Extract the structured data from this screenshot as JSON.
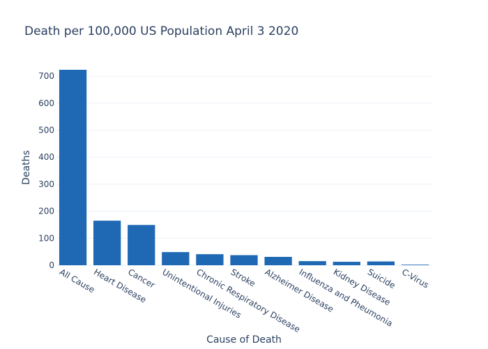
{
  "chart_data": {
    "type": "bar",
    "title": "Death per 100,000 US Population April 3 2020",
    "xlabel": "Cause of Death",
    "ylabel": "Deaths",
    "categories": [
      "All Cause",
      "Heart Disease",
      "Cancer",
      "Unintentional Injuries",
      "Chronic Respiratory Disease",
      "Stroke",
      "Alzheimer Disease",
      "Influenza and Pheumonia",
      "Kidney Disease",
      "Suicide",
      "C-Virus"
    ],
    "values": [
      723.6,
      165.0,
      149.1,
      48.7,
      40.9,
      37.3,
      31.0,
      15.2,
      12.8,
      14.0,
      2.2
    ],
    "ylim": [
      0,
      723.6
    ],
    "yticks": [
      0,
      100,
      200,
      300,
      400,
      500,
      600,
      700
    ],
    "grid": true,
    "legend": "none",
    "colors": {
      "bar": "#1f68b3",
      "grid": "#ebf0f8",
      "text": "#2a3f5f",
      "background": "#ffffff"
    }
  }
}
